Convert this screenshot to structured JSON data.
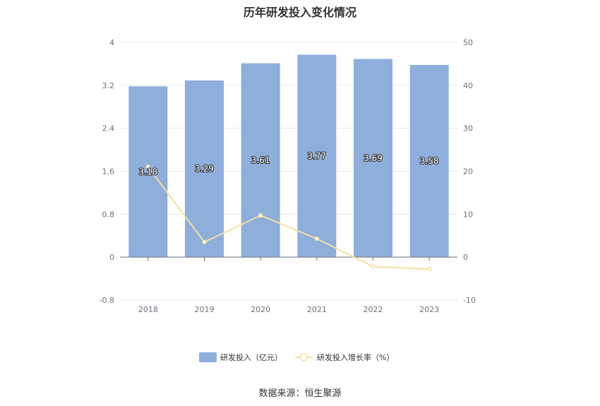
{
  "chart_data": {
    "type": "bar",
    "title": "历年研发投入变化情况",
    "categories": [
      "2018",
      "2019",
      "2020",
      "2021",
      "2022",
      "2023"
    ],
    "series": [
      {
        "name": "研发投入（亿元）",
        "type": "bar",
        "axis": "left",
        "color": "#8eaedb",
        "values": [
          3.18,
          3.29,
          3.61,
          3.77,
          3.69,
          3.58
        ],
        "labels": [
          "3.18",
          "3.29",
          "3.61",
          "3.77",
          "3.69",
          "3.58"
        ]
      },
      {
        "name": "研发投入增长率（%）",
        "type": "line",
        "axis": "right",
        "color": "#f8dfa1",
        "values": [
          21.0,
          3.5,
          9.7,
          4.3,
          -2.2,
          -2.8
        ]
      }
    ],
    "y_left": {
      "min": -0.8,
      "max": 4,
      "ticks": [
        "4",
        "3.2",
        "2.4",
        "1.6",
        "0.8",
        "0",
        "-0.8"
      ]
    },
    "y_right": {
      "min": -10,
      "max": 50,
      "ticks": [
        "50",
        "40",
        "30",
        "20",
        "10",
        "0",
        "-10"
      ]
    },
    "grid": true,
    "legend": "bottom-center",
    "source": "数据来源：恒生聚源"
  }
}
